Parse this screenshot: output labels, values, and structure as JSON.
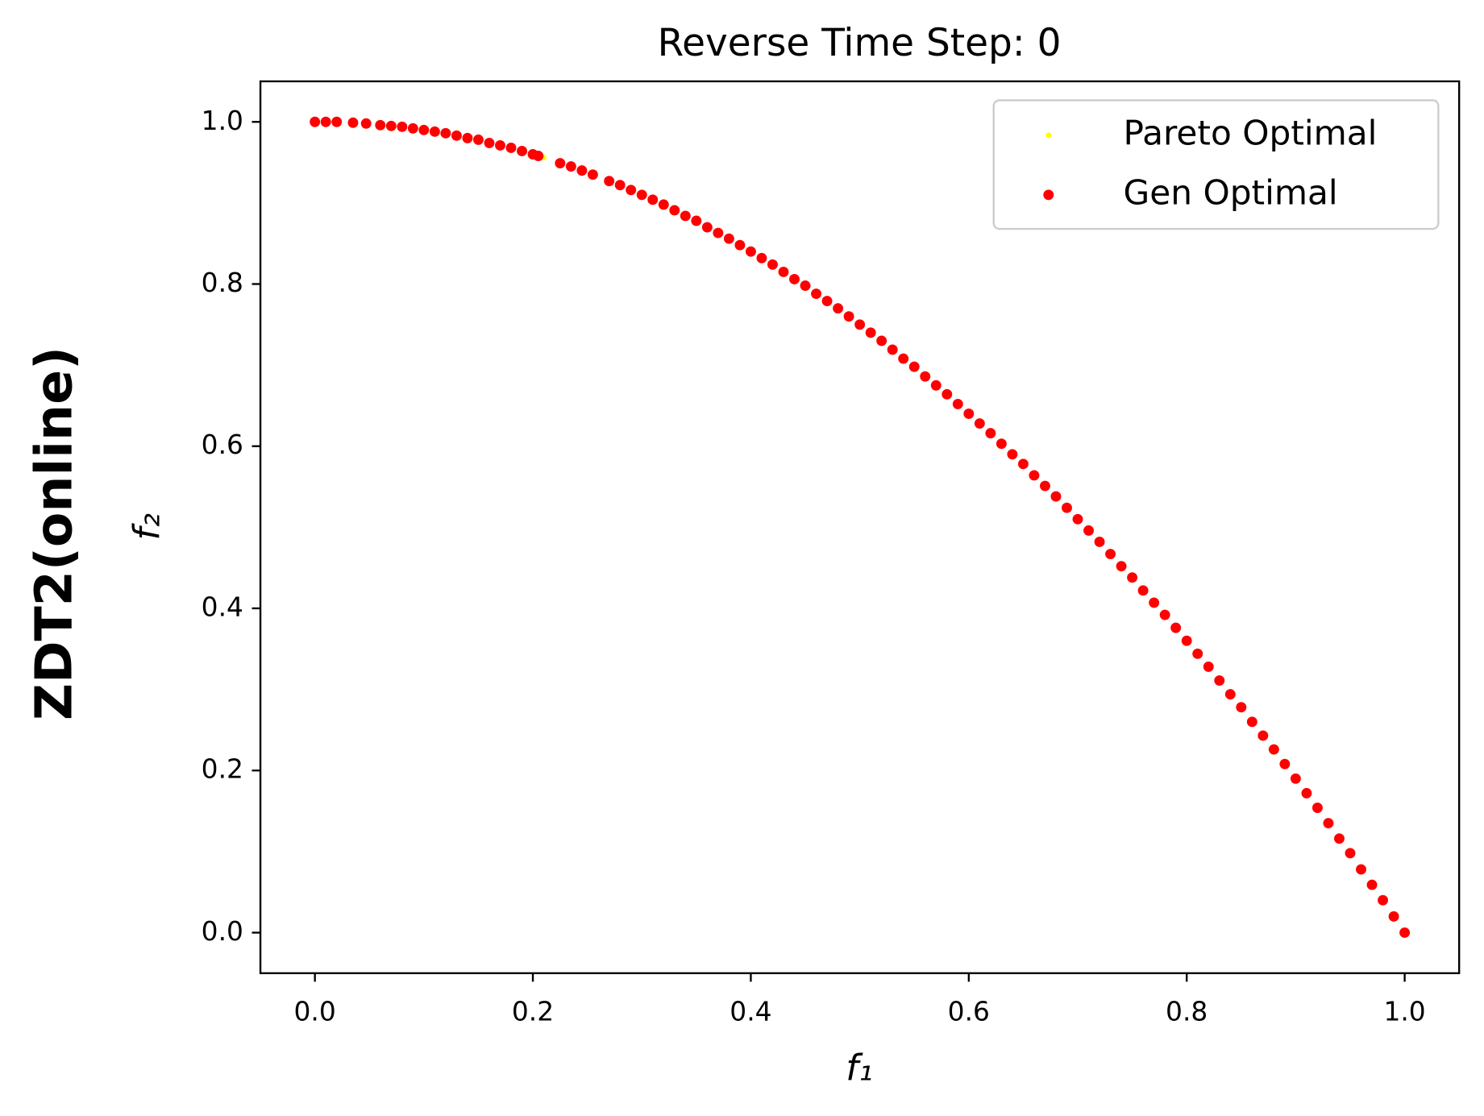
{
  "chart_data": {
    "type": "scatter",
    "title": "Reverse Time Step: 0",
    "side_label": "ZDT2(online)",
    "x_label": "f₁",
    "y_label": "f₂",
    "xlim": [
      -0.05,
      1.05
    ],
    "ylim": [
      -0.05,
      1.05
    ],
    "xticks": [
      {
        "value": 0,
        "label": "0.0"
      },
      {
        "value": 0.2,
        "label": "0.2"
      },
      {
        "value": 0.4,
        "label": "0.4"
      },
      {
        "value": 0.6,
        "label": "0.6"
      },
      {
        "value": 0.8,
        "label": "0.8"
      },
      {
        "value": 1,
        "label": "1.0"
      }
    ],
    "yticks": [
      {
        "value": 0,
        "label": "0.0"
      },
      {
        "value": 0.2,
        "label": "0.2"
      },
      {
        "value": 0.4,
        "label": "0.4"
      },
      {
        "value": 0.6,
        "label": "0.6"
      },
      {
        "value": 0.8,
        "label": "0.8"
      },
      {
        "value": 1,
        "label": "1.0"
      }
    ],
    "grid": false,
    "legend": "upper right",
    "series": [
      {
        "name": "Pareto Optimal",
        "color": "#ffff00",
        "size": 3,
        "x": [
          0,
          0.035,
          0.1,
          0.21,
          0.3,
          0.4,
          0.5,
          0.6,
          0.7,
          0.8,
          0.9,
          1.0
        ],
        "values": [
          1.0,
          0.999,
          0.99,
          0.956,
          0.91,
          0.84,
          0.75,
          0.64,
          0.51,
          0.36,
          0.19,
          0
        ]
      },
      {
        "name": "Gen Optimal",
        "color": "#ff0000",
        "size": 5.5,
        "x": [
          0,
          0.01,
          0.02,
          0.035,
          0.047,
          0.06,
          0.07,
          0.08,
          0.09,
          0.1,
          0.11,
          0.12,
          0.13,
          0.14,
          0.15,
          0.16,
          0.17,
          0.18,
          0.19,
          0.2,
          0.205,
          0.225,
          0.235,
          0.245,
          0.255,
          0.27,
          0.28,
          0.29,
          0.3,
          0.31,
          0.32,
          0.33,
          0.34,
          0.35,
          0.36,
          0.37,
          0.38,
          0.39,
          0.4,
          0.41,
          0.42,
          0.43,
          0.44,
          0.45,
          0.46,
          0.47,
          0.48,
          0.49,
          0.5,
          0.51,
          0.52,
          0.53,
          0.54,
          0.55,
          0.56,
          0.57,
          0.58,
          0.59,
          0.6,
          0.61,
          0.62,
          0.63,
          0.64,
          0.65,
          0.66,
          0.67,
          0.68,
          0.69,
          0.7,
          0.71,
          0.72,
          0.73,
          0.74,
          0.75,
          0.76,
          0.77,
          0.78,
          0.79,
          0.8,
          0.81,
          0.82,
          0.83,
          0.84,
          0.85,
          0.86,
          0.87,
          0.88,
          0.89,
          0.9,
          0.91,
          0.92,
          0.93,
          0.94,
          0.95,
          0.96,
          0.97,
          0.98,
          0.99,
          1.0
        ],
        "values": [
          1.0,
          1.0,
          1.0,
          0.999,
          0.998,
          0.996,
          0.995,
          0.994,
          0.992,
          0.99,
          0.988,
          0.986,
          0.983,
          0.98,
          0.978,
          0.974,
          0.971,
          0.968,
          0.964,
          0.96,
          0.958,
          0.949,
          0.945,
          0.94,
          0.935,
          0.927,
          0.922,
          0.916,
          0.91,
          0.904,
          0.898,
          0.891,
          0.884,
          0.878,
          0.87,
          0.863,
          0.856,
          0.848,
          0.84,
          0.832,
          0.824,
          0.815,
          0.806,
          0.798,
          0.788,
          0.779,
          0.77,
          0.76,
          0.75,
          0.74,
          0.73,
          0.719,
          0.708,
          0.698,
          0.686,
          0.675,
          0.664,
          0.652,
          0.64,
          0.628,
          0.616,
          0.603,
          0.59,
          0.578,
          0.564,
          0.551,
          0.538,
          0.524,
          0.51,
          0.496,
          0.482,
          0.467,
          0.452,
          0.438,
          0.422,
          0.407,
          0.392,
          0.376,
          0.36,
          0.344,
          0.328,
          0.311,
          0.294,
          0.278,
          0.26,
          0.243,
          0.226,
          0.208,
          0.19,
          0.172,
          0.154,
          0.135,
          0.116,
          0.098,
          0.078,
          0.059,
          0.04,
          0.02,
          0
        ]
      }
    ]
  }
}
